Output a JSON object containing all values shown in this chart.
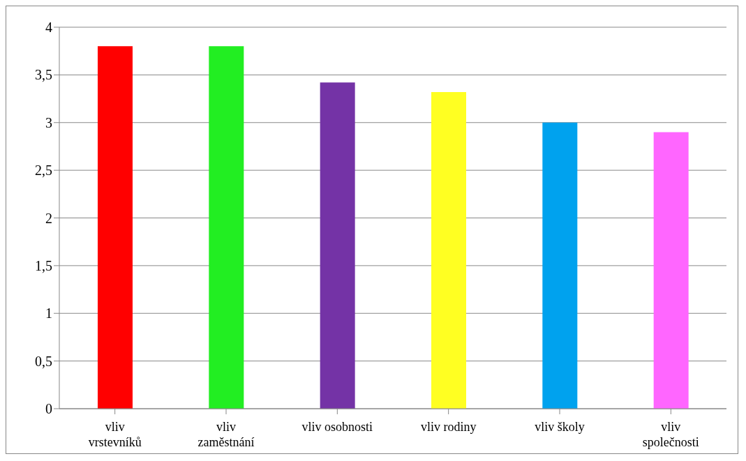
{
  "chart_data": {
    "type": "bar",
    "categories": [
      "vliv vrstevníků",
      "vliv zaměstnání",
      "vliv osobnosti",
      "vliv rodiny",
      "vliv školy",
      "vliv společnosti"
    ],
    "values": [
      3.8,
      3.8,
      3.42,
      3.32,
      3.0,
      2.9
    ],
    "colors": [
      "#ff0000",
      "#22ee22",
      "#7433a6",
      "#ffff22",
      "#00a2ee",
      "#ff66ff"
    ],
    "ylim": [
      0,
      4
    ],
    "yticks": [
      0,
      {
        "value": 0.5,
        "label": "0,5"
      },
      1,
      {
        "value": 1.5,
        "label": "1,5"
      },
      2,
      {
        "value": 2.5,
        "label": "2,5"
      },
      3,
      {
        "value": 3.5,
        "label": "3,5"
      },
      4
    ],
    "grid": "y",
    "legend": false
  }
}
